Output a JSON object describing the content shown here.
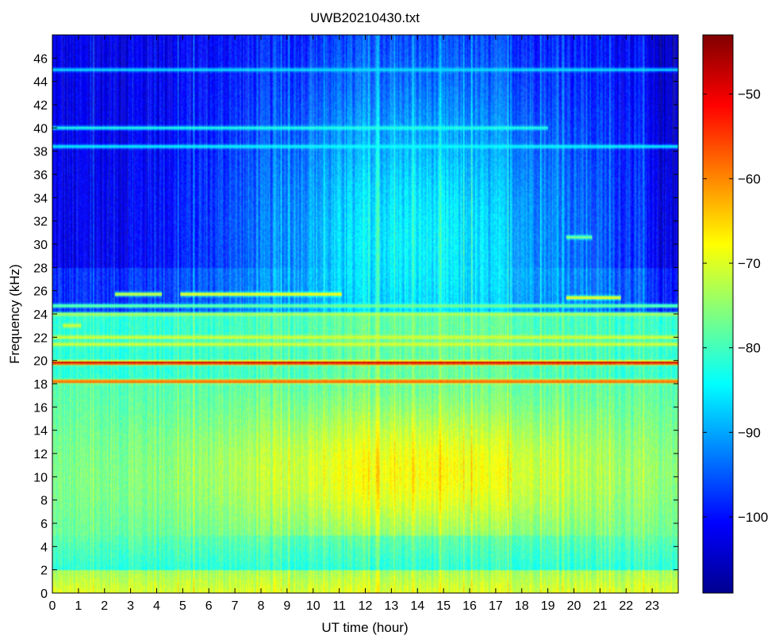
{
  "chart_data": {
    "type": "heatmap",
    "title": "UWB20210430.txt",
    "xlabel": "UT time (hour)",
    "ylabel": "Frequency (kHz)",
    "xlim": [
      0,
      24
    ],
    "ylim": [
      0,
      48
    ],
    "x_ticks": [
      0,
      1,
      2,
      3,
      4,
      5,
      6,
      7,
      8,
      9,
      10,
      11,
      12,
      13,
      14,
      15,
      16,
      17,
      18,
      19,
      20,
      21,
      22,
      23
    ],
    "y_ticks": [
      0,
      2,
      4,
      6,
      8,
      10,
      12,
      14,
      16,
      18,
      20,
      22,
      24,
      26,
      28,
      30,
      32,
      34,
      36,
      38,
      40,
      42,
      44,
      46
    ],
    "colorbar": {
      "range": [
        -109,
        -43
      ],
      "ticks": [
        -50,
        -60,
        -70,
        -80,
        -90,
        -100
      ],
      "colormap": "jet"
    },
    "features": {
      "narrowband_lines": [
        {
          "freq_khz": 19.8,
          "level_db": -46,
          "t_start": 0,
          "t_end": 24
        },
        {
          "freq_khz": 18.2,
          "level_db": -55,
          "t_start": 0,
          "t_end": 24
        },
        {
          "freq_khz": 21.4,
          "level_db": -70,
          "t_start": 0,
          "t_end": 24
        },
        {
          "freq_khz": 22.0,
          "level_db": -70,
          "t_start": 0,
          "t_end": 24
        },
        {
          "freq_khz": 24.0,
          "level_db": -72,
          "t_start": 0,
          "t_end": 24
        },
        {
          "freq_khz": 24.7,
          "level_db": -76,
          "t_start": 0,
          "t_end": 24
        },
        {
          "freq_khz": 25.7,
          "level_db": -66,
          "t_start": 4.9,
          "t_end": 11.1
        },
        {
          "freq_khz": 25.7,
          "level_db": -68,
          "t_start": 2.4,
          "t_end": 4.2
        },
        {
          "freq_khz": 25.4,
          "level_db": -66,
          "t_start": 19.7,
          "t_end": 21.8
        },
        {
          "freq_khz": 30.6,
          "level_db": -75,
          "t_start": 19.7,
          "t_end": 20.7
        },
        {
          "freq_khz": 23.0,
          "level_db": -70,
          "t_start": 0.4,
          "t_end": 1.1
        },
        {
          "freq_khz": 38.4,
          "level_db": -84,
          "t_start": 0,
          "t_end": 24
        },
        {
          "freq_khz": 40.0,
          "level_db": -82,
          "t_start": 0,
          "t_end": 19.0
        },
        {
          "freq_khz": 45.0,
          "level_db": -86,
          "t_start": 0,
          "t_end": 24
        }
      ],
      "background_levels_db": {
        "low_freq_band_0_2khz": -70,
        "mid_freq_daytime_8_12khz": -72,
        "high_freq_night_30_48khz": -100,
        "high_freq_day_30_48khz": -85
      }
    }
  }
}
